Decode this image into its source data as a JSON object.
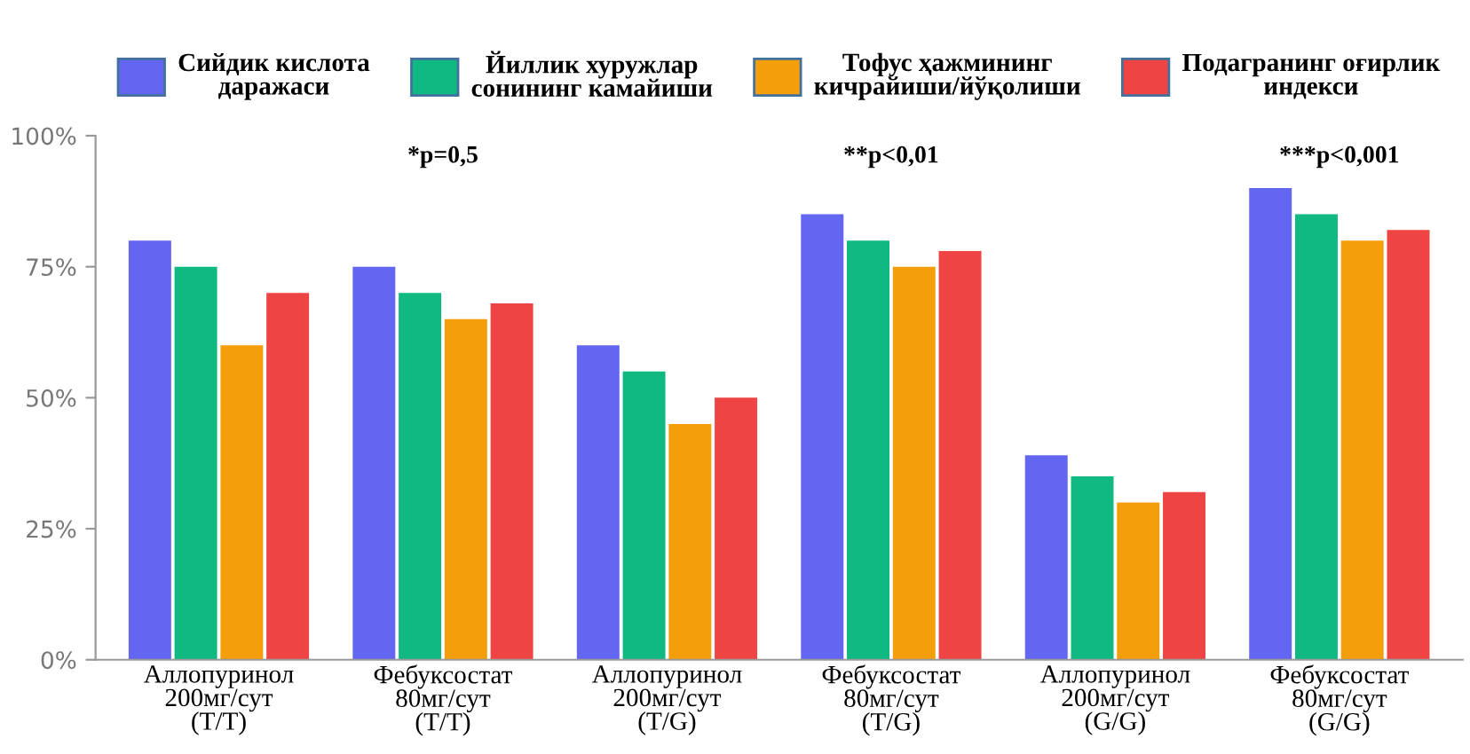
{
  "chart_data": {
    "type": "bar",
    "categories": [
      "Аллопуринол\n200мг/сут\n(T/T)",
      "Фебуксостат\n80мг/сут\n(T/T)",
      "Аллопуринол\n200мг/сут\n(T/G)",
      "Фебуксостат\n80мг/сут\n(T/G)",
      "Аллопуринол\n200мг/сут\n(G/G)",
      "Фебуксостат\n80мг/сут\n(G/G)"
    ],
    "series": [
      {
        "name": "Сийдик кислота\nдаражаси",
        "color": "#6366f1",
        "values": [
          80,
          75,
          60,
          85,
          39,
          90
        ]
      },
      {
        "name": "Йиллик хуружлар\nсонининг камайиши",
        "color": "#10b981",
        "values": [
          75,
          70,
          55,
          80,
          35,
          85
        ]
      },
      {
        "name": "Тофус ҳажмининг\nкичрайиши/йўқолиши",
        "color": "#f59e0b",
        "values": [
          60,
          65,
          45,
          75,
          30,
          80
        ]
      },
      {
        "name": "Подагранинг оғирлик\nиндекси",
        "color": "#ef4444",
        "values": [
          70,
          68,
          50,
          78,
          32,
          82
        ]
      }
    ],
    "ylim": [
      0,
      100
    ],
    "yticks": [
      {
        "value": 0,
        "label": "0%"
      },
      {
        "value": 25,
        "label": "25%"
      },
      {
        "value": 50,
        "label": "50%"
      },
      {
        "value": 75,
        "label": "75%"
      },
      {
        "value": 100,
        "label": "100%"
      }
    ],
    "annotations": [
      "*p=0,5",
      "**p<0,01",
      "***p<0,001"
    ],
    "grid": false,
    "legend": "top"
  }
}
